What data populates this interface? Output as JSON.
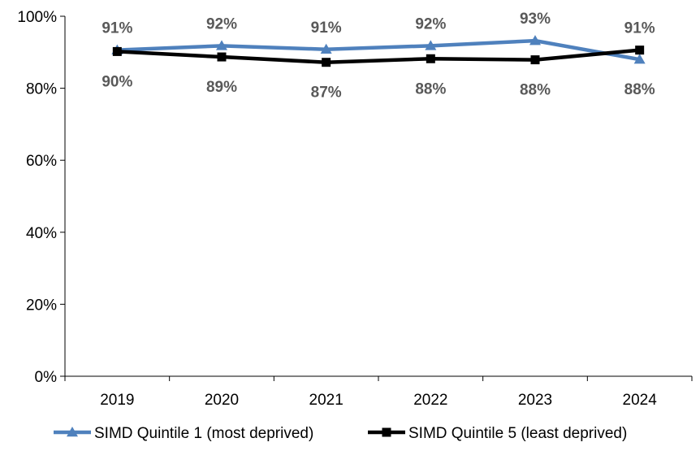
{
  "chart_data": {
    "type": "line",
    "categories": [
      "2019",
      "2020",
      "2021",
      "2022",
      "2023",
      "2024"
    ],
    "y_ticks": [
      "0%",
      "20%",
      "40%",
      "60%",
      "80%",
      "100%"
    ],
    "ylim": [
      0,
      100
    ],
    "grid": false,
    "legend_position": "bottom",
    "series": [
      {
        "name": "SIMD Quintile 1 (most deprived)",
        "values": [
          90.6,
          91.8,
          90.8,
          91.8,
          93.2,
          88.0
        ],
        "labels": [
          "91%",
          "92%",
          "91%",
          "92%",
          "93%",
          "88%"
        ],
        "label_position": [
          "above",
          "above",
          "above",
          "above",
          "above",
          "below"
        ],
        "color": "#4F81BD",
        "marker": "triangle"
      },
      {
        "name": "SIMD Quintile 5 (least deprived)",
        "values": [
          90.2,
          88.7,
          87.2,
          88.2,
          87.9,
          90.6
        ],
        "labels": [
          "90%",
          "89%",
          "87%",
          "88%",
          "88%",
          "91%"
        ],
        "label_position": [
          "below",
          "below",
          "below",
          "below",
          "below",
          "above"
        ],
        "color": "#000000",
        "marker": "square"
      }
    ]
  }
}
